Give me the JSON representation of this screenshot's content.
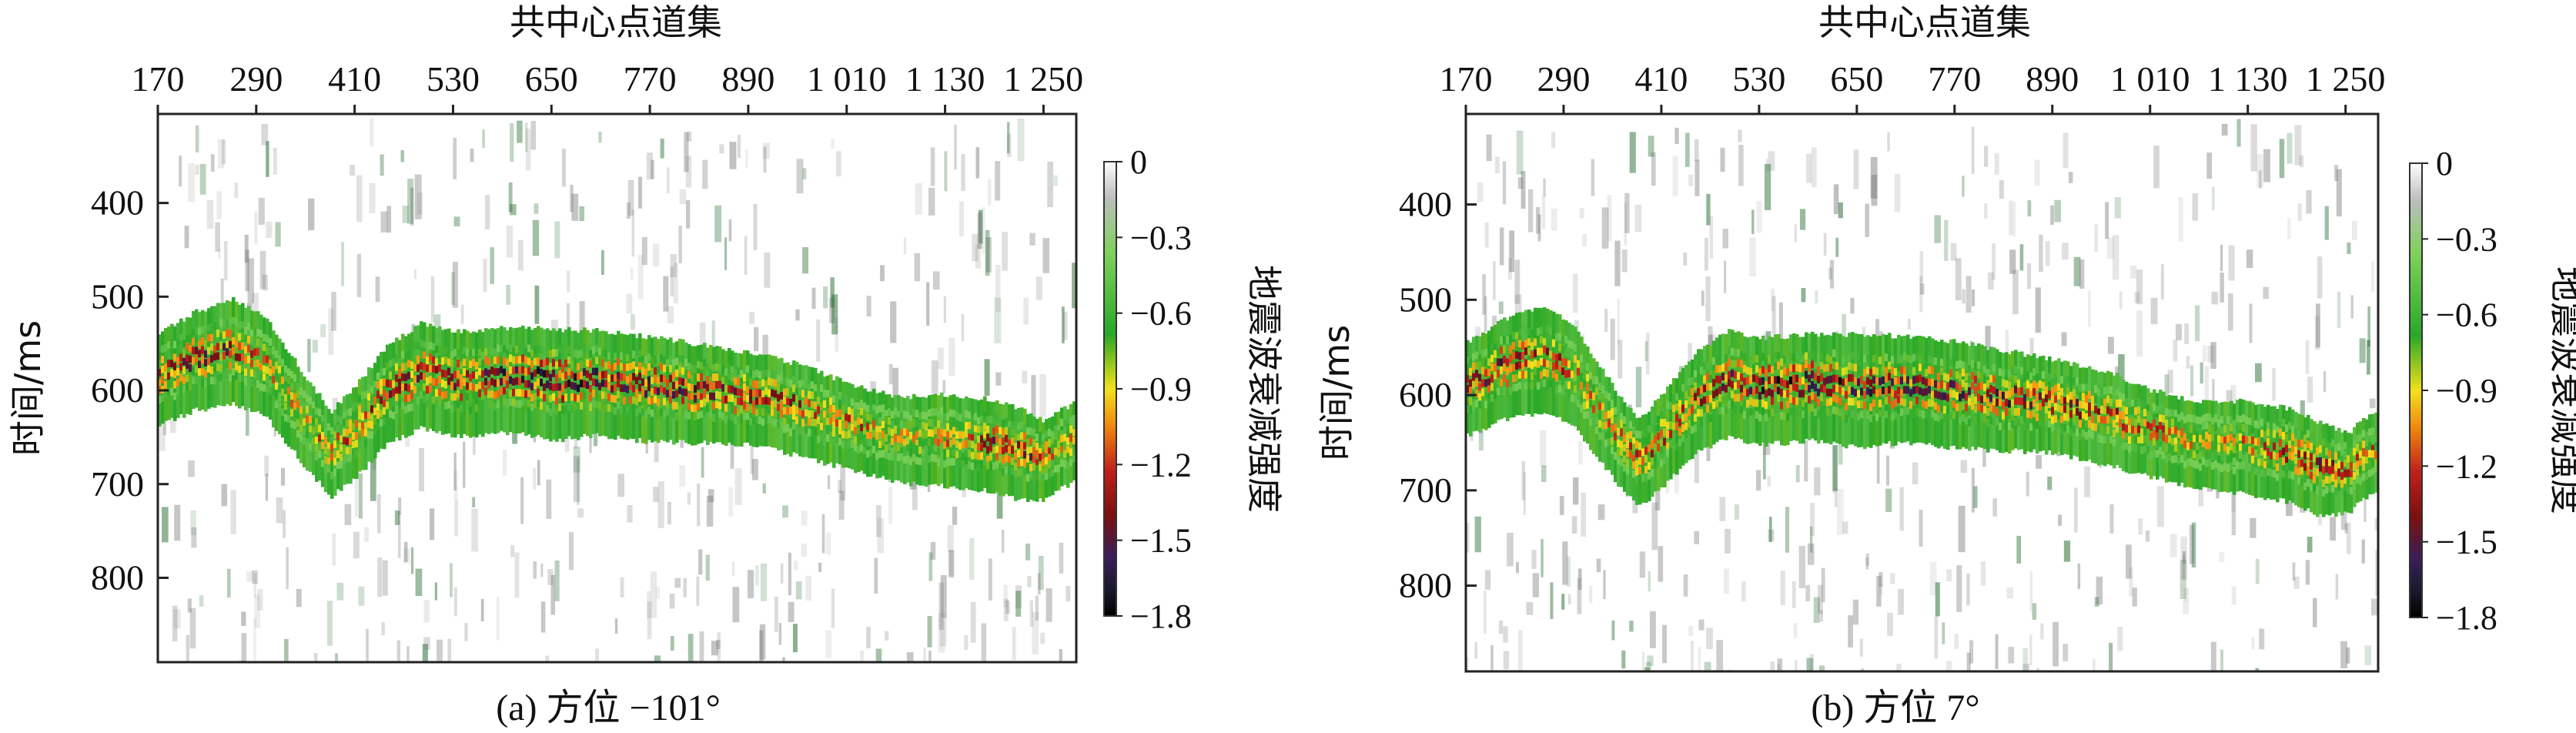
{
  "chart_data": [
    {
      "type": "heatmap",
      "id": "a",
      "caption": "(a) 方位 −101°",
      "xlabel": "共中心点道集",
      "ylabel": "时间/ms",
      "x_ticks": [
        "170",
        "290",
        "410",
        "530",
        "650",
        "770",
        "890",
        "1 010",
        "1 130",
        "1 250"
      ],
      "x_tick_values": [
        170,
        290,
        410,
        530,
        650,
        770,
        890,
        1010,
        1130,
        1250
      ],
      "xlim": [
        170,
        1290
      ],
      "y_ticks": [
        "400",
        "500",
        "600",
        "700",
        "800"
      ],
      "y_tick_values": [
        400,
        500,
        600,
        700,
        800
      ],
      "ylim": [
        305,
        890
      ],
      "colorbar": {
        "label": "地震波衰减强度",
        "ticks": [
          "0",
          "−0.3",
          "−0.6",
          "−0.9",
          "−1.2",
          "−1.5",
          "−1.8"
        ],
        "tick_values": [
          0,
          -0.3,
          -0.6,
          -0.9,
          -1.2,
          -1.5,
          -1.8
        ],
        "range": [
          -1.8,
          0
        ]
      },
      "horizon": {
        "x": [
          170,
          215,
          260,
          300,
          340,
          380,
          410,
          450,
          490,
          530,
          600,
          650,
          700,
          770,
          830,
          890,
          960,
          1010,
          1070,
          1130,
          1180,
          1220,
          1250,
          1270,
          1290
        ],
        "y": [
          585,
          565,
          555,
          570,
          620,
          665,
          640,
          600,
          580,
          590,
          585,
          590,
          588,
          595,
          600,
          605,
          620,
          635,
          650,
          650,
          655,
          665,
          672,
          660,
          650
        ],
        "band_width_ms": [
          70,
          75,
          80,
          75,
          70,
          65,
          70,
          75,
          80,
          80,
          80,
          85,
          80,
          80,
          75,
          70,
          70,
          65,
          65,
          70,
          70,
          70,
          60,
          60,
          60
        ],
        "peak_value": [
          -1.4,
          -1.6,
          -1.5,
          -1.2,
          -1.1,
          -1.3,
          -1.4,
          -1.5,
          -1.6,
          -1.6,
          -1.7,
          -1.8,
          -1.7,
          -1.6,
          -1.6,
          -1.5,
          -1.4,
          -1.3,
          -1.1,
          -1.2,
          -1.5,
          -1.6,
          -1.3,
          -1.2,
          -1.2
        ]
      }
    },
    {
      "type": "heatmap",
      "id": "b",
      "caption": "(b) 方位 7°",
      "xlabel": "共中心点道集",
      "ylabel": "时间/ms",
      "x_ticks": [
        "170",
        "290",
        "410",
        "530",
        "650",
        "770",
        "890",
        "1 010",
        "1 130",
        "1 250"
      ],
      "x_tick_values": [
        170,
        290,
        410,
        530,
        650,
        770,
        890,
        1010,
        1130,
        1250
      ],
      "xlim": [
        170,
        1290
      ],
      "y_ticks": [
        "400",
        "500",
        "600",
        "700",
        "800"
      ],
      "y_tick_values": [
        400,
        500,
        600,
        700,
        800
      ],
      "ylim": [
        305,
        890
      ],
      "colorbar": {
        "label": "地震波衰减强度",
        "ticks": [
          "0",
          "−0.3",
          "−0.6",
          "−0.9",
          "−1.2",
          "−1.5",
          "−1.8"
        ],
        "tick_values": [
          0,
          -0.3,
          -0.6,
          -0.9,
          -1.2,
          -1.5,
          -1.8
        ],
        "range": [
          -1.8,
          0
        ]
      },
      "horizon": {
        "x": [
          170,
          215,
          260,
          300,
          340,
          380,
          410,
          450,
          490,
          530,
          600,
          650,
          700,
          770,
          830,
          890,
          960,
          1010,
          1070,
          1130,
          1180,
          1220,
          1250,
          1270,
          1290
        ],
        "y": [
          590,
          570,
          558,
          575,
          625,
          670,
          645,
          605,
          585,
          592,
          588,
          592,
          590,
          596,
          602,
          608,
          622,
          637,
          650,
          652,
          660,
          675,
          680,
          665,
          652
        ],
        "band_width_ms": [
          70,
          75,
          80,
          75,
          70,
          65,
          70,
          75,
          80,
          80,
          80,
          85,
          80,
          80,
          75,
          70,
          70,
          65,
          65,
          70,
          70,
          70,
          60,
          60,
          60
        ],
        "peak_value": [
          -1.5,
          -1.6,
          -1.5,
          -1.3,
          -1.2,
          -1.4,
          -1.4,
          -1.5,
          -1.6,
          -1.7,
          -1.7,
          -1.7,
          -1.6,
          -1.6,
          -1.6,
          -1.5,
          -1.4,
          -1.3,
          -1.1,
          -1.2,
          -1.5,
          -1.6,
          -1.3,
          -1.2,
          -1.2
        ]
      }
    }
  ],
  "colors": {
    "background": "#ffffff",
    "colormap": [
      "#ffffff",
      "#bdbdbd",
      "#7fd15a",
      "#29a828",
      "#f2e11b",
      "#f08a10",
      "#c0201a",
      "#7a1010",
      "#3a1e5a",
      "#1a1a2e",
      "#000000"
    ]
  }
}
